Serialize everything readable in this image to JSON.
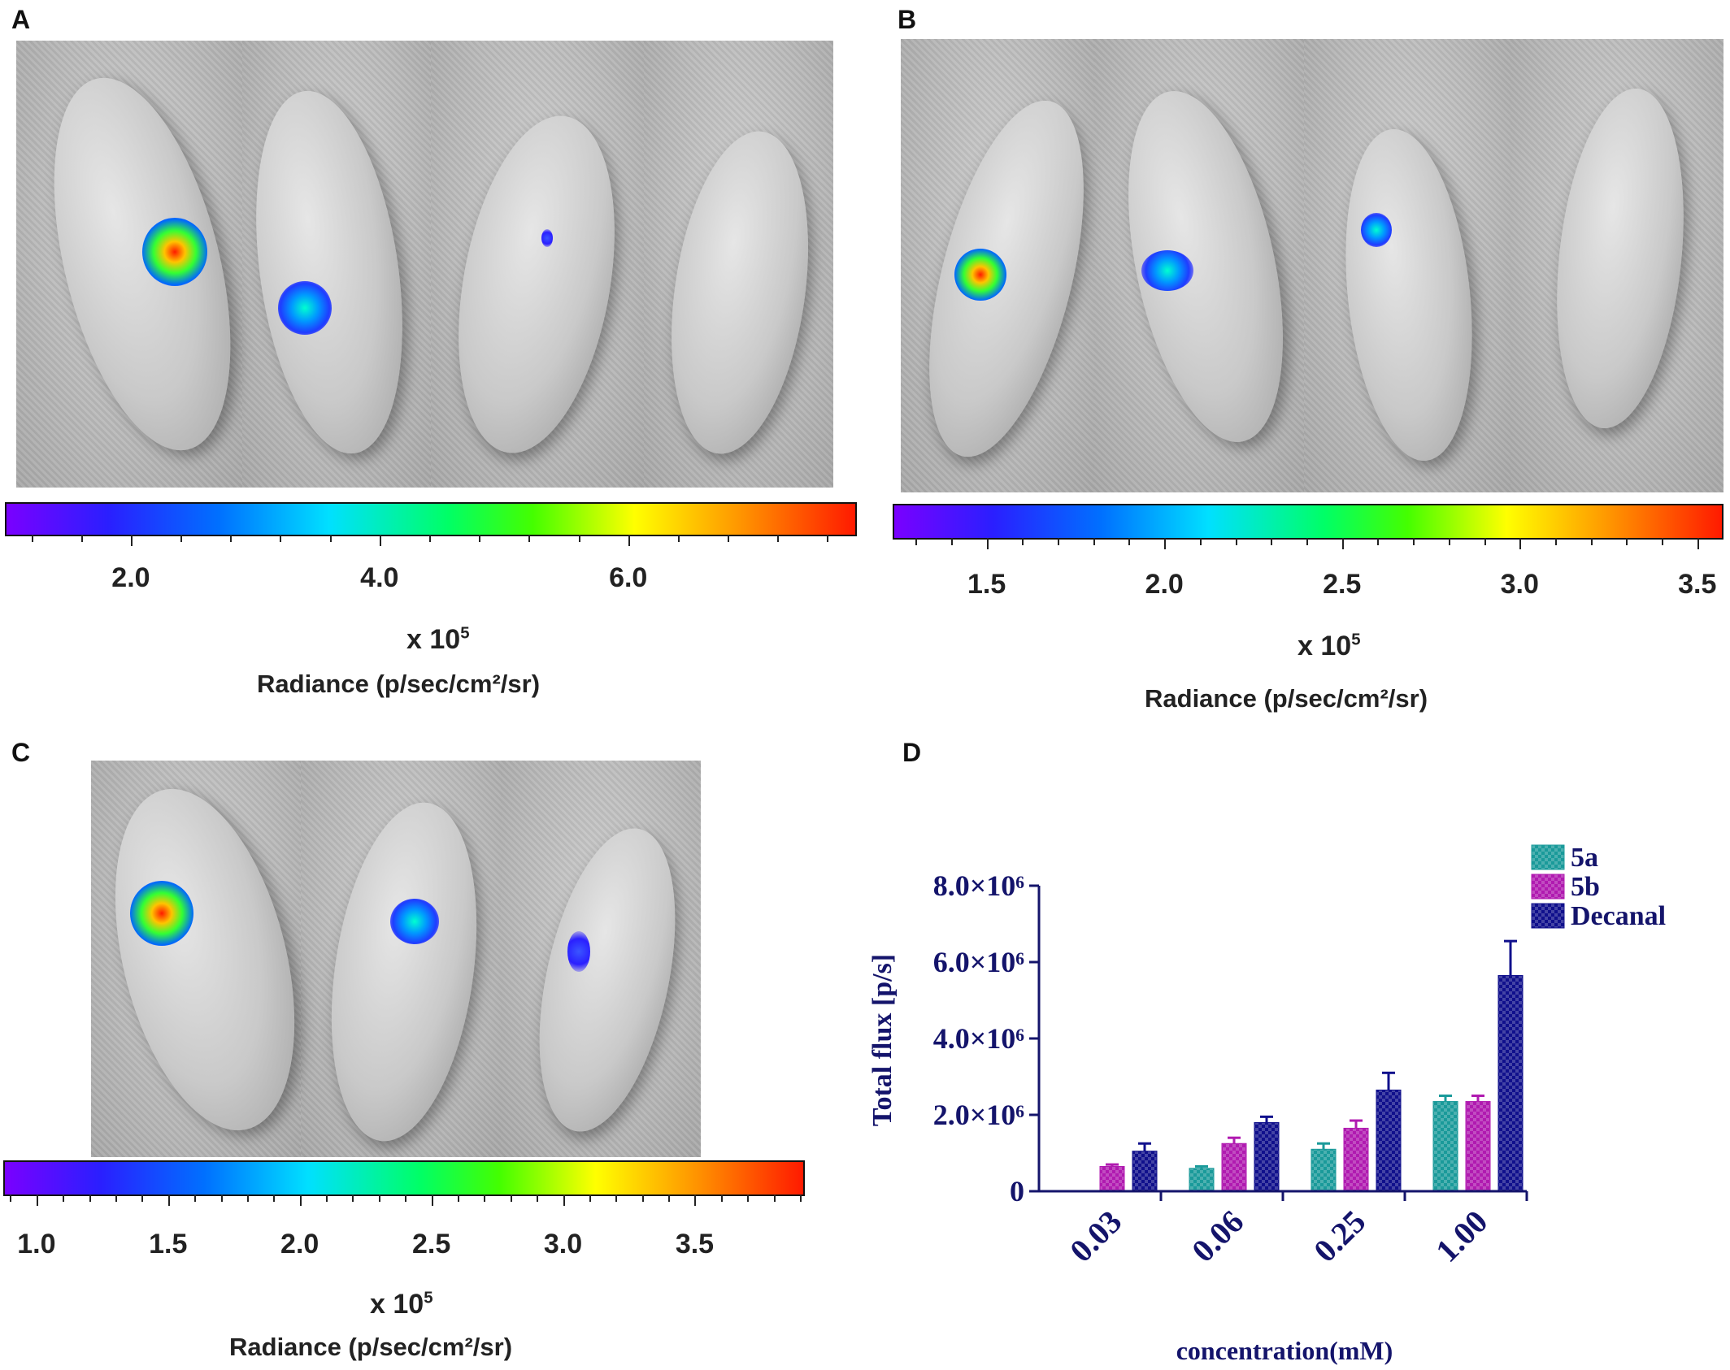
{
  "panels": {
    "A": {
      "letter": "A",
      "multiplier": "x 10",
      "multiplier_exp": "5",
      "radiance_label": "Radiance (p/sec/cm²/sr)",
      "scale_ticks": [
        "2.0",
        "4.0",
        "6.0"
      ],
      "scale_range": [
        1.0,
        7.8
      ],
      "tick_values": [
        2.0,
        4.0,
        6.0
      ]
    },
    "B": {
      "letter": "B",
      "multiplier": "x 10",
      "multiplier_exp": "5",
      "radiance_label": "Radiance (p/sec/cm²/sr)",
      "scale_ticks": [
        "1.5",
        "2.0",
        "2.5",
        "3.0",
        "3.5"
      ],
      "scale_range": [
        1.24,
        3.56
      ],
      "tick_values": [
        1.5,
        2.0,
        2.5,
        3.0,
        3.5
      ]
    },
    "C": {
      "letter": "C",
      "multiplier": "x 10",
      "multiplier_exp": "5",
      "radiance_label": "Radiance (p/sec/cm²/sr)",
      "scale_ticks": [
        "1.0",
        "1.5",
        "2.0",
        "2.5",
        "3.0",
        "3.5"
      ],
      "scale_range": [
        0.88,
        3.9
      ],
      "tick_values": [
        1.0,
        1.5,
        2.0,
        2.5,
        3.0,
        3.5
      ]
    },
    "D": {
      "letter": "D"
    }
  },
  "colors": {
    "axis": "#14146b",
    "series_5a": "#1a9a9a",
    "series_5b": "#b01ab0",
    "series_decanal": "#10108c"
  },
  "chart_data": {
    "type": "bar",
    "title": "",
    "xlabel": "concentration(mM)",
    "ylabel": "Total flux [p/s]",
    "categories": [
      "0.03",
      "0.06",
      "0.25",
      "1.00"
    ],
    "y_tick_labels": [
      "0",
      "2.0×10⁶",
      "4.0×10⁶",
      "6.0×10⁶",
      "8.0×10⁶"
    ],
    "y_tick_values": [
      0,
      2000000,
      4000000,
      6000000,
      8000000
    ],
    "ylim": [
      0,
      8000000
    ],
    "legend_position": "top-right",
    "series": [
      {
        "name": "5a",
        "values": [
          null,
          600000,
          1100000,
          2350000
        ],
        "errors": [
          null,
          50000,
          150000,
          150000
        ]
      },
      {
        "name": "5b",
        "values": [
          650000,
          1250000,
          1650000,
          2350000
        ],
        "errors": [
          50000,
          150000,
          200000,
          150000
        ]
      },
      {
        "name": "Decanal",
        "values": [
          1050000,
          1800000,
          2650000,
          5650000
        ],
        "errors": [
          200000,
          150000,
          450000,
          900000
        ]
      }
    ]
  }
}
